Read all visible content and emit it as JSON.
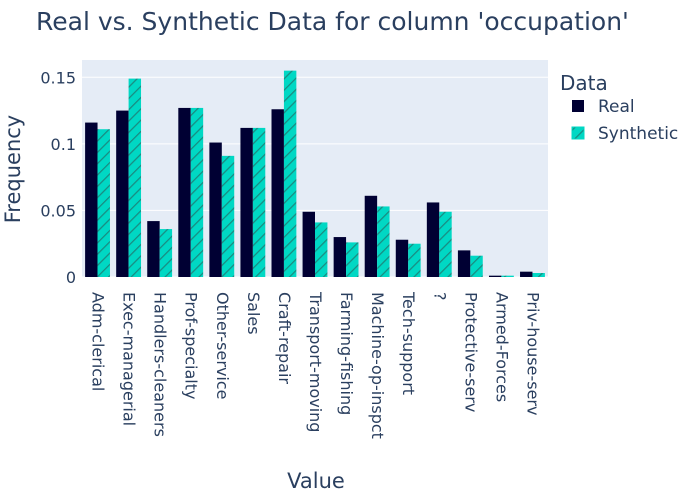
{
  "chart_data": {
    "type": "bar",
    "title": "Real vs. Synthetic Data for column 'occupation'",
    "xlabel": "Value",
    "ylabel": "Frequency",
    "ylim": [
      0,
      0.163
    ],
    "yticks": [
      0,
      0.05,
      0.1,
      0.15
    ],
    "ytick_labels": [
      "0",
      "0.05",
      "0.1",
      "0.15"
    ],
    "grid": true,
    "legend": {
      "title": "Data",
      "position": "right"
    },
    "categories": [
      "Adm-clerical",
      "Exec-managerial",
      "Handlers-cleaners",
      "Prof-specialty",
      "Other-service",
      "Sales",
      "Craft-repair",
      "Transport-moving",
      "Farming-fishing",
      "Machine-op-inspct",
      "Tech-support",
      "?",
      "Protective-serv",
      "Armed-Forces",
      "Priv-house-serv"
    ],
    "series": [
      {
        "name": "Real",
        "color": "#000033",
        "pattern": "solid",
        "values": [
          0.116,
          0.125,
          0.042,
          0.127,
          0.101,
          0.112,
          0.126,
          0.049,
          0.03,
          0.061,
          0.028,
          0.056,
          0.02,
          0.001,
          0.004
        ]
      },
      {
        "name": "Synthetic",
        "color": "#00d8c4",
        "pattern": "diagonal-hatch",
        "values": [
          0.111,
          0.149,
          0.036,
          0.127,
          0.091,
          0.112,
          0.155,
          0.041,
          0.026,
          0.053,
          0.025,
          0.049,
          0.016,
          0.001,
          0.003
        ]
      }
    ]
  }
}
